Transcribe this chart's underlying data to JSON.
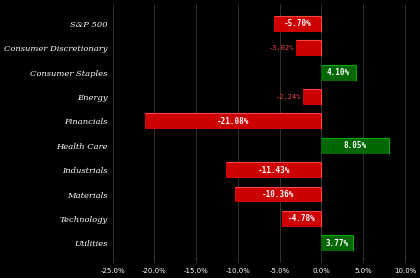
{
  "categories": [
    "S&P 500",
    "Consumer Discretionary",
    "Consumer Staples",
    "Energy",
    "Financials",
    "Health Care",
    "Industrials",
    "Materials",
    "Technology",
    "Utilities"
  ],
  "values": [
    -5.7,
    -3.02,
    4.1,
    -2.24,
    -21.08,
    8.05,
    -11.43,
    -10.36,
    -4.78,
    3.77
  ],
  "bar_colors": [
    "#cc0000",
    "#cc0000",
    "#006600",
    "#cc0000",
    "#cc0000",
    "#006600",
    "#cc0000",
    "#cc0000",
    "#cc0000",
    "#006600"
  ],
  "bar_edge_colors": [
    "#ff4444",
    "#ff4444",
    "#00aa00",
    "#ff4444",
    "#ff4444",
    "#00aa00",
    "#ff4444",
    "#ff4444",
    "#ff4444",
    "#00aa00"
  ],
  "label_text_color": "#ffffff",
  "outside_label_colors": [
    "#ff4444",
    "#ff4444",
    "#00cc00",
    "#ff4444",
    "#ff4444",
    "#00cc00",
    "#ff4444",
    "#ff4444",
    "#ff4444",
    "#00cc00"
  ],
  "background_color": "#000000",
  "text_color": "#ffffff",
  "grid_color": "#444444",
  "xlim": [
    -25.0,
    10.5
  ],
  "xticks": [
    -25.0,
    -20.0,
    -15.0,
    -10.0,
    -5.0,
    0.0,
    5.0,
    10.0
  ],
  "xtick_labels": [
    "-25.0%",
    "-20.0%",
    "-15.0%",
    "-10.0%",
    "-5.0%",
    "0.0%",
    "5.0%",
    "10.0%"
  ],
  "bar_height": 0.65,
  "small_bar_threshold": 3.5
}
